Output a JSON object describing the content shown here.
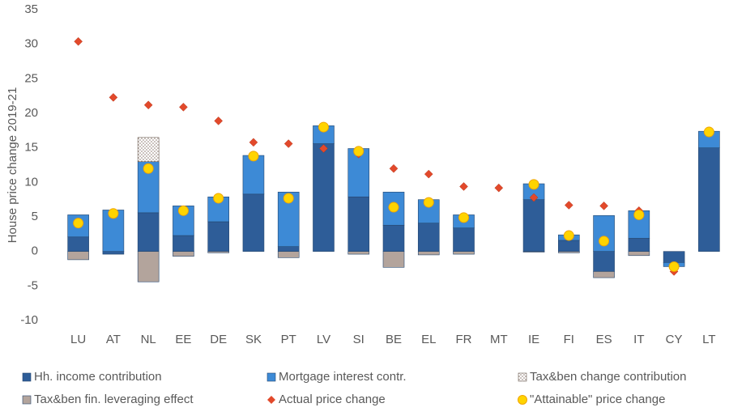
{
  "chart_data": {
    "type": "bar",
    "y_label": "House price change 2019-21",
    "categories": [
      "LU",
      "AT",
      "NL",
      "EE",
      "DE",
      "SK",
      "PT",
      "LV",
      "SI",
      "BE",
      "EL",
      "FR",
      "MT",
      "IE",
      "FI",
      "ES",
      "IT",
      "CY",
      "LT"
    ],
    "ylim": [
      -10,
      35
    ],
    "yticks": [
      -10,
      -5,
      0,
      5,
      10,
      15,
      20,
      25,
      30,
      35
    ],
    "grid": false,
    "series": [
      {
        "name": "Hh. income contribution",
        "type": "bar",
        "color": "#2e5d98",
        "values": [
          2.1,
          -0.4,
          5.6,
          2.3,
          4.3,
          8.3,
          0.7,
          15.6,
          7.9,
          3.8,
          4.1,
          3.4,
          null,
          7.5,
          1.6,
          -2.9,
          1.9,
          -1.6,
          15.0
        ]
      },
      {
        "name": "Mortgage interest contr.",
        "type": "bar",
        "color": "#3d8ad6",
        "values": [
          3.2,
          6.0,
          7.4,
          4.3,
          3.6,
          5.6,
          7.9,
          2.6,
          7.0,
          4.8,
          3.4,
          1.9,
          null,
          2.3,
          0.8,
          5.2,
          4.0,
          -0.6,
          2.4
        ]
      },
      {
        "name": "Tax&ben change contribution",
        "type": "bar",
        "color": "#8c7a70",
        "pattern": "dotted",
        "values": [
          0,
          0,
          3.5,
          0,
          0,
          0,
          0,
          0,
          0,
          0,
          0,
          0,
          null,
          0,
          0,
          0,
          0,
          0,
          0
        ]
      },
      {
        "name": "Tax&ben fin. leveraging effect",
        "type": "bar",
        "color": "#b3a49c",
        "values": [
          -1.2,
          0,
          -4.4,
          -0.7,
          -0.2,
          0,
          -0.9,
          0,
          -0.4,
          -2.3,
          -0.5,
          -0.4,
          null,
          -0.1,
          -0.2,
          -0.9,
          -0.6,
          0,
          0
        ]
      },
      {
        "name": "Actual price change",
        "type": "scatter",
        "marker": "diamond",
        "color": "#e2492b",
        "values": [
          30.4,
          22.3,
          21.2,
          20.9,
          18.9,
          15.8,
          15.6,
          14.9,
          14.1,
          12.0,
          11.2,
          9.4,
          9.2,
          7.8,
          6.7,
          6.6,
          5.9,
          -2.9,
          null
        ]
      },
      {
        "name": "\"Attainable\" price change",
        "type": "scatter",
        "marker": "circle",
        "color": "#ffd400",
        "values": [
          4.1,
          5.5,
          12.0,
          5.9,
          7.7,
          13.8,
          7.7,
          18.0,
          14.5,
          6.4,
          7.1,
          4.9,
          null,
          9.7,
          2.3,
          1.5,
          5.3,
          -2.2,
          17.3
        ]
      }
    ]
  }
}
